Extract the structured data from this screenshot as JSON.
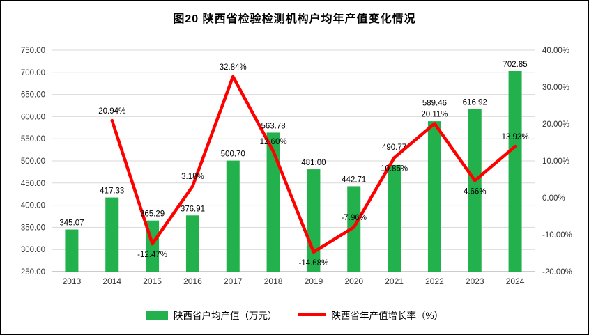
{
  "chart_data": {
    "type": "combo",
    "title": "图20  陕西省检验检测机构户均年产值变化情况",
    "categories": [
      "2013",
      "2014",
      "2015",
      "2016",
      "2017",
      "2018",
      "2019",
      "2020",
      "2021",
      "2022",
      "2023",
      "2024"
    ],
    "series": [
      {
        "name": "陕西省户均产值（万元）",
        "type": "bar",
        "axis": "left",
        "color": "#22B14C",
        "values": [
          345.07,
          417.33,
          365.29,
          376.91,
          500.7,
          563.78,
          481.0,
          442.71,
          490.77,
          589.46,
          616.92,
          702.85
        ],
        "labels": [
          "345.07",
          "417.33",
          "365.29",
          "376.91",
          "500.70",
          "563.78",
          "481.00",
          "442.71",
          "490.77",
          "589.46",
          "616.92",
          "702.85"
        ]
      },
      {
        "name": "陕西省年产值增长率（%）",
        "type": "line",
        "axis": "right",
        "color": "#FF0000",
        "values": [
          null,
          20.94,
          -12.47,
          3.18,
          32.84,
          12.6,
          -14.68,
          -7.96,
          10.85,
          20.11,
          4.66,
          13.93
        ],
        "labels": [
          null,
          "20.94%",
          "-12.47%",
          "3.18%",
          "32.84%",
          "12.60%",
          "-14.68%",
          "-7.96%",
          "10.85%",
          "20.11%",
          "4.66%",
          "13.93%"
        ],
        "label_positions": [
          null,
          "above",
          "below",
          "above",
          "above",
          "above",
          "below",
          "above",
          "below",
          "above",
          "below",
          "above"
        ]
      }
    ],
    "left_axis": {
      "min": 250,
      "max": 750,
      "step": 50,
      "tick_labels": [
        "750.00",
        "700.00",
        "650.00",
        "600.00",
        "550.00",
        "500.00",
        "450.00",
        "400.00",
        "350.00",
        "300.00",
        "250.00"
      ]
    },
    "right_axis": {
      "min": -20,
      "max": 40,
      "step": 10,
      "tick_labels": [
        "40.00%",
        "30.00%",
        "20.00%",
        "10.00%",
        "0.00%",
        "-10.00%",
        "-20.00%"
      ]
    },
    "grid": true,
    "legend_position": "bottom"
  }
}
